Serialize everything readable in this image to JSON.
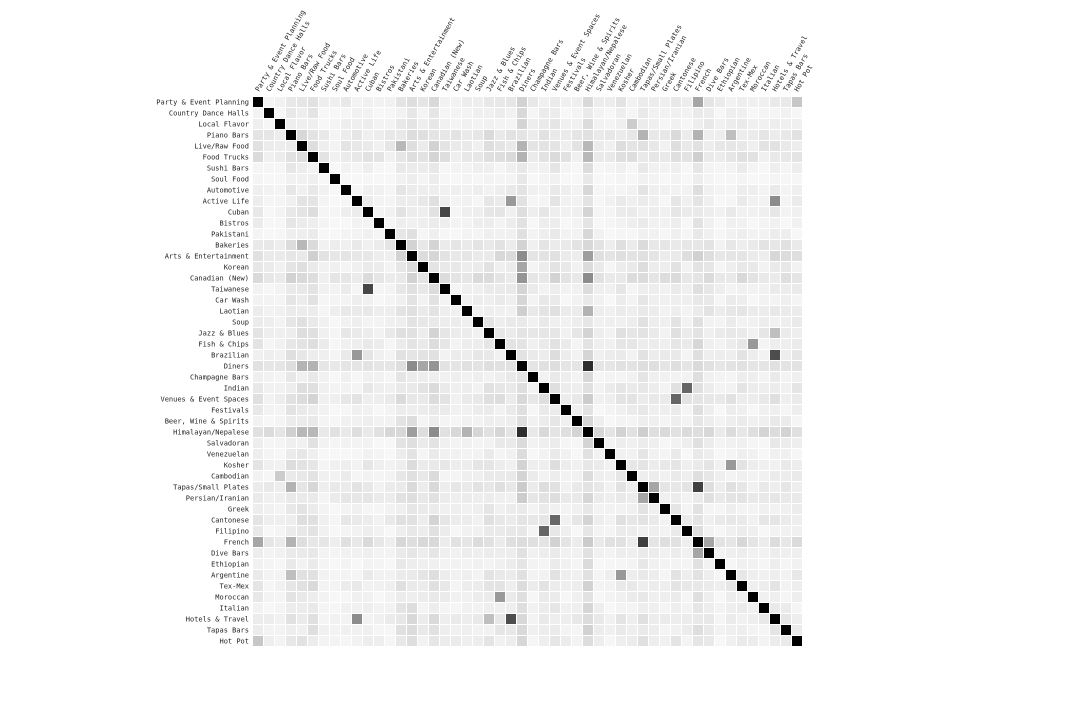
{
  "chart_data": {
    "type": "heatmap",
    "title": "",
    "xlabel": "",
    "ylabel": "",
    "color_low": "#ffffff",
    "color_high": "#000000",
    "categories": [
      "Party & Event Planning",
      "Country Dance Halls",
      "Local Flavor",
      "Piano Bars",
      "Live/Raw Food",
      "Food Trucks",
      "Sushi Bars",
      "Soul Food",
      "Automotive",
      "Active Life",
      "Cuban",
      "Bistros",
      "Pakistani",
      "Bakeries",
      "Arts & Entertainment",
      "Korean",
      "Canadian (New)",
      "Taiwanese",
      "Car Wash",
      "Laotian",
      "Soup",
      "Jazz & Blues",
      "Fish & Chips",
      "Brazilian",
      "Diners",
      "Champagne Bars",
      "Indian",
      "Venues & Event Spaces",
      "Festivals",
      "Beer, Wine & Spirits",
      "Himalayan/Nepalese",
      "Salvadoran",
      "Venezuelan",
      "Kosher",
      "Cambodian",
      "Tapas/Small Plates",
      "Persian/Iranian",
      "Greek",
      "Cantonese",
      "Filipino",
      "French",
      "Dive Bars",
      "Ethiopian",
      "Argentine",
      "Tex-Mex",
      "Moroccan",
      "Italian",
      "Hotels & Travel",
      "Tapas Bars",
      "Hot Pot"
    ],
    "diagonal": 1.0,
    "background": 0.03,
    "row_base": [
      0.05,
      0.02,
      0.03,
      0.07,
      0.07,
      0.08,
      0.02,
      0.01,
      0.03,
      0.03,
      0.04,
      0.02,
      0.02,
      0.07,
      0.09,
      0.05,
      0.09,
      0.04,
      0.03,
      0.05,
      0.04,
      0.06,
      0.05,
      0.05,
      0.12,
      0.03,
      0.05,
      0.07,
      0.03,
      0.03,
      0.12,
      0.03,
      0.02,
      0.05,
      0.04,
      0.07,
      0.06,
      0.03,
      0.06,
      0.03,
      0.09,
      0.05,
      0.02,
      0.04,
      0.05,
      0.03,
      0.03,
      0.05,
      0.04,
      0.04
    ],
    "strong_pairs": [
      {
        "a": "Party & Event Planning",
        "b": "French",
        "v": 0.35
      },
      {
        "a": "Local Flavor",
        "b": "Cambodian",
        "v": 0.2
      },
      {
        "a": "Piano Bars",
        "b": "Tapas/Small Plates",
        "v": 0.3
      },
      {
        "a": "Piano Bars",
        "b": "French",
        "v": 0.3
      },
      {
        "a": "Piano Bars",
        "b": "Argentine",
        "v": 0.25
      },
      {
        "a": "Live/Raw Food",
        "b": "Bakeries",
        "v": 0.28
      },
      {
        "a": "Live/Raw Food",
        "b": "Diners",
        "v": 0.3
      },
      {
        "a": "Live/Raw Food",
        "b": "Himalayan/Nepalese",
        "v": 0.28
      },
      {
        "a": "Food Trucks",
        "b": "Diners",
        "v": 0.3
      },
      {
        "a": "Food Trucks",
        "b": "Himalayan/Nepalese",
        "v": 0.28
      },
      {
        "a": "Active Life",
        "b": "Brazilian",
        "v": 0.4
      },
      {
        "a": "Active Life",
        "b": "Hotels & Travel",
        "v": 0.45
      },
      {
        "a": "Cuban",
        "b": "Taiwanese",
        "v": 0.72
      },
      {
        "a": "Arts & Entertainment",
        "b": "Diners",
        "v": 0.45
      },
      {
        "a": "Arts & Entertainment",
        "b": "Himalayan/Nepalese",
        "v": 0.38
      },
      {
        "a": "Korean",
        "b": "Diners",
        "v": 0.35
      },
      {
        "a": "Canadian (New)",
        "b": "Diners",
        "v": 0.42
      },
      {
        "a": "Canadian (New)",
        "b": "Himalayan/Nepalese",
        "v": 0.45
      },
      {
        "a": "Laotian",
        "b": "Himalayan/Nepalese",
        "v": 0.3
      },
      {
        "a": "Brazilian",
        "b": "Hotels & Travel",
        "v": 0.7
      },
      {
        "a": "Diners",
        "b": "Himalayan/Nepalese",
        "v": 0.82
      },
      {
        "a": "Indian",
        "b": "Filipino",
        "v": 0.6
      },
      {
        "a": "Venues & Event Spaces",
        "b": "Cantonese",
        "v": 0.6
      },
      {
        "a": "Tapas/Small Plates",
        "b": "French",
        "v": 0.75
      },
      {
        "a": "Tapas/Small Plates",
        "b": "Persian/Iranian",
        "v": 0.35
      },
      {
        "a": "French",
        "b": "Dive Bars",
        "v": 0.35
      },
      {
        "a": "Kosher",
        "b": "Argentine",
        "v": 0.4
      },
      {
        "a": "Fish & Chips",
        "b": "Moroccan",
        "v": 0.4
      },
      {
        "a": "Jazz & Blues",
        "b": "Hotels & Travel",
        "v": 0.25
      },
      {
        "a": "Party & Event Planning",
        "b": "Hot Pot",
        "v": 0.22
      }
    ]
  }
}
